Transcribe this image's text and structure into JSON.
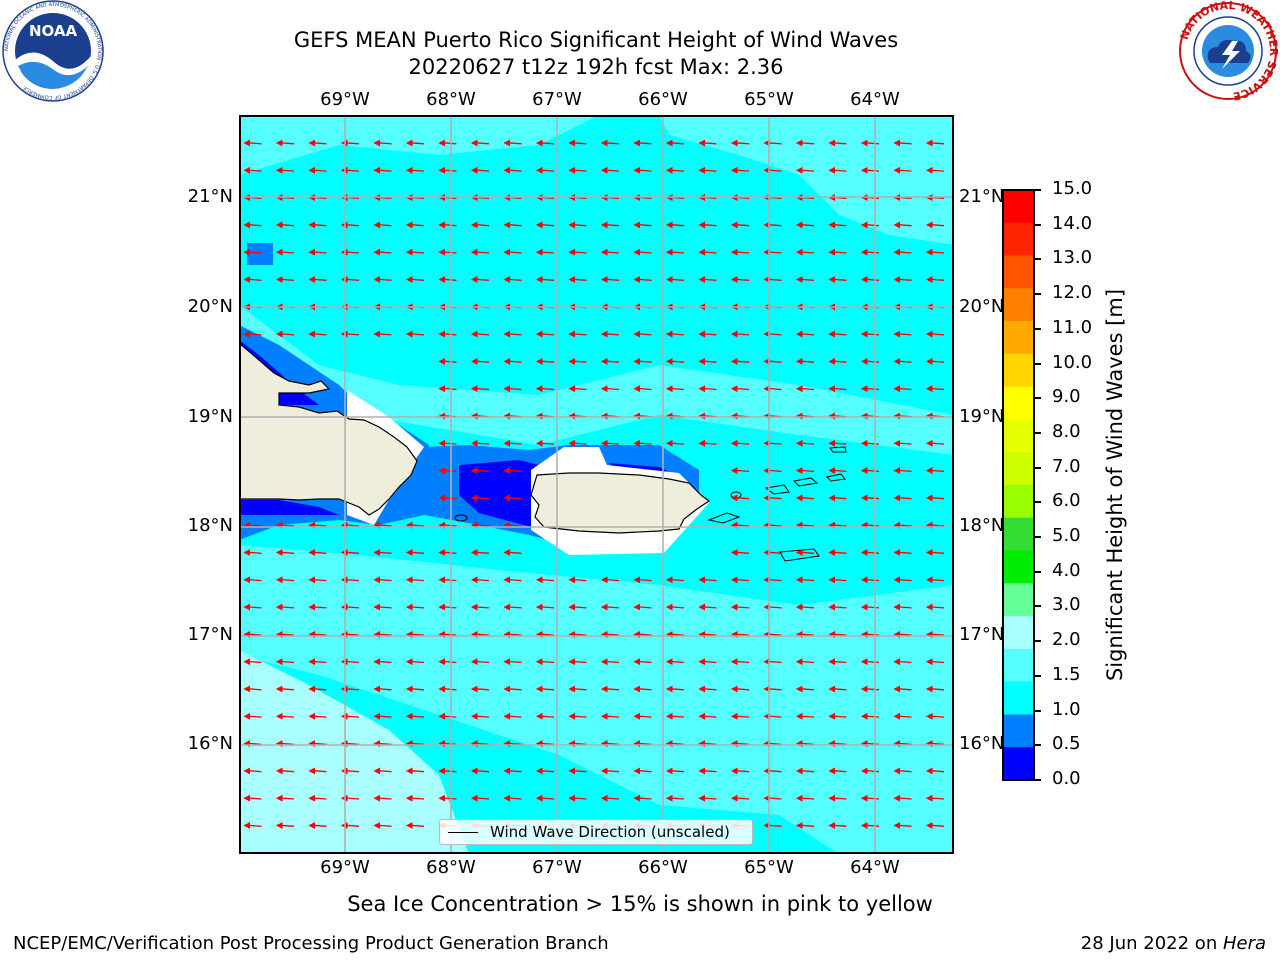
{
  "header": {
    "title_line1": "GEFS MEAN Puerto Rico Significant Height of Wind Waves",
    "title_line2": "20220627 t12z 192h fcst   Max: 2.36"
  },
  "logos": {
    "noaa_text": "NOAA",
    "noaa_ring_text": "NATIONAL OCEANIC AND ATMOSPHERIC ADMINISTRATION · U.S. DEPARTMENT OF COMMERCE",
    "nws_ring_text": "NATIONAL WEATHER SERVICE"
  },
  "map": {
    "lon_labels": [
      "69°W",
      "68°W",
      "67°W",
      "66°W",
      "65°W",
      "64°W"
    ],
    "lat_labels": [
      "21°N",
      "20°N",
      "19°N",
      "18°N",
      "17°N",
      "16°N"
    ],
    "ocean_color": "#00ffff",
    "land_color": "#efeedd",
    "arrow_color": "#ff0000",
    "legend_text": "Wind Wave Direction (unscaled)",
    "wave_direction": "from east (arrows pointing west)"
  },
  "colorbar": {
    "label": "Significant Height of Wind Waves [m]",
    "ticks": [
      "15.0",
      "14.0",
      "13.0",
      "12.0",
      "11.0",
      "10.0",
      "9.0",
      "8.0",
      "7.0",
      "6.0",
      "5.0",
      "4.0",
      "3.0",
      "2.0",
      "1.5",
      "1.0",
      "0.5",
      "0.0"
    ],
    "colors": [
      "#ff0000",
      "#ff2400",
      "#ff5500",
      "#ff8000",
      "#ffaa00",
      "#ffd500",
      "#ffff00",
      "#e6ff00",
      "#ccff00",
      "#99ff00",
      "#33dd33",
      "#00ee00",
      "#66ff99",
      "#aaffff",
      "#55ffff",
      "#00ffff",
      "#0080ff",
      "#0000ff"
    ]
  },
  "subtitle": "Sea Ice Concentration > 15% is shown in pink to yellow",
  "footer": {
    "left": "NCEP/EMC/Verification Post Processing Product Generation Branch",
    "right_date": "28 Jun 2022 on ",
    "right_host": "Hera"
  }
}
